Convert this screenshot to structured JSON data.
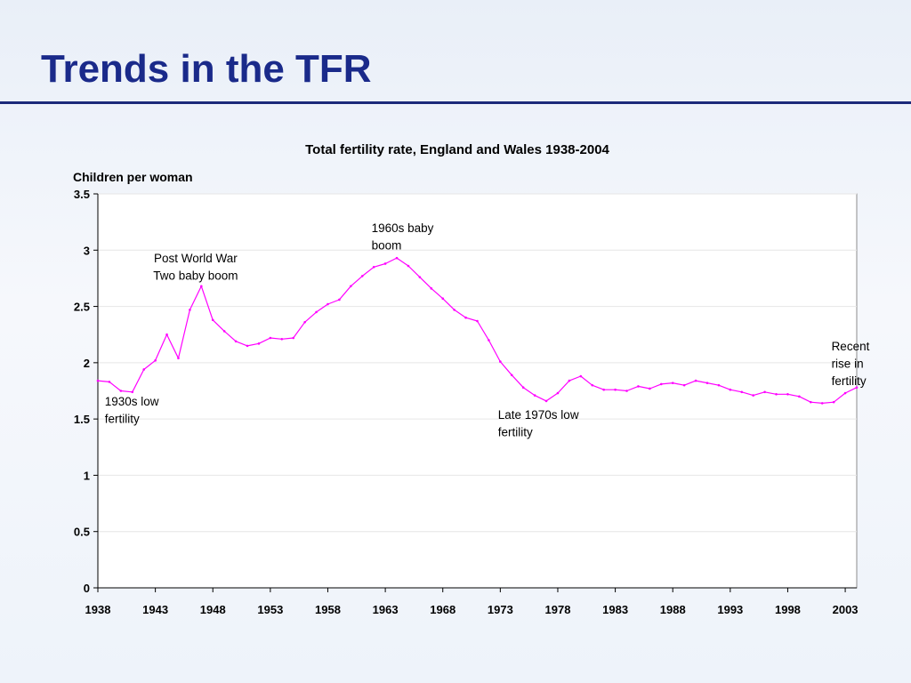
{
  "slide": {
    "title": "Trends in the TFR"
  },
  "colors": {
    "title": "#1a2a8a",
    "series_line": "#ff00ff",
    "rule": "#1c2a7a"
  },
  "chart_data": {
    "type": "line",
    "title": "Total fertility rate, England and Wales 1938-2004",
    "xlabel": "",
    "ylabel": "Children per woman",
    "xlim": [
      1938,
      2004
    ],
    "ylim": [
      0,
      3.5
    ],
    "grid": true,
    "legend": "none",
    "x_ticks": [
      "1938",
      "1943",
      "1948",
      "1953",
      "1958",
      "1963",
      "1968",
      "1973",
      "1978",
      "1983",
      "1988",
      "1993",
      "1998",
      "2003"
    ],
    "y_ticks": [
      "0",
      "0.5",
      "1",
      "1.5",
      "2",
      "2.5",
      "3",
      "3.5"
    ],
    "series": [
      {
        "x": [
          1938,
          1939,
          1940,
          1941,
          1942,
          1943,
          1944,
          1945,
          1946,
          1947,
          1948,
          1949,
          1950,
          1951,
          1952,
          1953,
          1954,
          1955,
          1956,
          1957,
          1958,
          1959,
          1960,
          1961,
          1962,
          1963,
          1964,
          1965,
          1966,
          1967,
          1968,
          1969,
          1970,
          1971,
          1972,
          1973,
          1974,
          1975,
          1976,
          1977,
          1978,
          1979,
          1980,
          1981,
          1982,
          1983,
          1984,
          1985,
          1986,
          1987,
          1988,
          1989,
          1990,
          1991,
          1992,
          1993,
          1994,
          1995,
          1996,
          1997,
          1998,
          1999,
          2000,
          2001,
          2002,
          2003,
          2004
        ],
        "values": [
          1.84,
          1.83,
          1.75,
          1.74,
          1.94,
          2.02,
          2.25,
          2.04,
          2.47,
          2.68,
          2.38,
          2.28,
          2.19,
          2.15,
          2.17,
          2.22,
          2.21,
          2.22,
          2.36,
          2.45,
          2.52,
          2.56,
          2.68,
          2.77,
          2.85,
          2.88,
          2.93,
          2.86,
          2.76,
          2.66,
          2.57,
          2.47,
          2.4,
          2.37,
          2.2,
          2.01,
          1.89,
          1.78,
          1.71,
          1.66,
          1.73,
          1.84,
          1.88,
          1.8,
          1.76,
          1.76,
          1.75,
          1.79,
          1.77,
          1.81,
          1.82,
          1.8,
          1.84,
          1.82,
          1.8,
          1.76,
          1.74,
          1.71,
          1.74,
          1.72,
          1.72,
          1.7,
          1.65,
          1.64,
          1.65,
          1.73,
          1.78
        ]
      }
    ],
    "annotations": [
      {
        "x": 1938.6,
        "y": 1.62,
        "lines": [
          "1930s low",
          "fertility"
        ],
        "align": "start"
      },
      {
        "x": 1946.5,
        "y": 2.89,
        "lines": [
          "Post World War",
          "Two baby boom"
        ],
        "align": "middle"
      },
      {
        "x": 1961.8,
        "y": 3.16,
        "lines": [
          "1960s baby",
          "boom"
        ],
        "align": "start"
      },
      {
        "x": 1972.8,
        "y": 1.5,
        "lines": [
          "Late 1970s low",
          "fertility"
        ],
        "align": "start"
      },
      {
        "x": 2001.8,
        "y": 2.11,
        "lines": [
          "Recent",
          "rise in",
          "fertility"
        ],
        "align": "start"
      }
    ]
  }
}
